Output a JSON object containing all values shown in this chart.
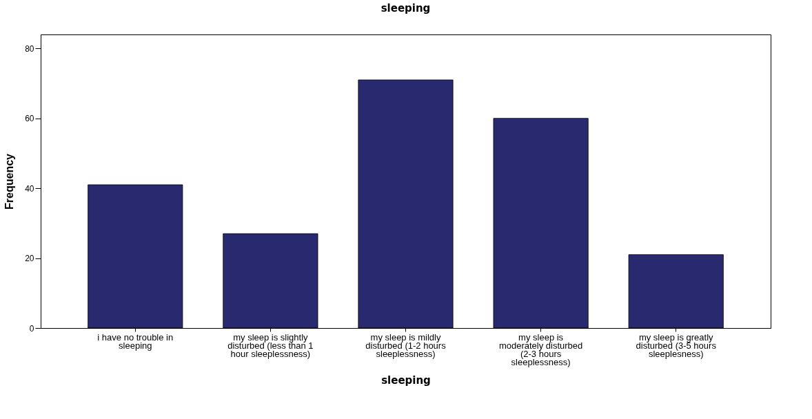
{
  "chart_data": {
    "type": "bar",
    "title": "sleeping",
    "xlabel": "sleeping",
    "ylabel": "Frequency",
    "categories": [
      "i have no trouble in sleeping",
      "my sleep is slightly disturbed (less than 1 hour sleeplessness)",
      "my sleep is mildly disturbed (1-2 hours sleeplessness)",
      "my sleep is moderately disturbed (2-3 hours sleeplessness)",
      "my sleep is greatly disturbed (3-5 hours sleeplesness)"
    ],
    "values": [
      41,
      27,
      71,
      60,
      21
    ],
    "color": "#29296f",
    "ylim": [
      0,
      84
    ],
    "yticks": [
      0,
      20,
      40,
      60,
      80
    ]
  }
}
